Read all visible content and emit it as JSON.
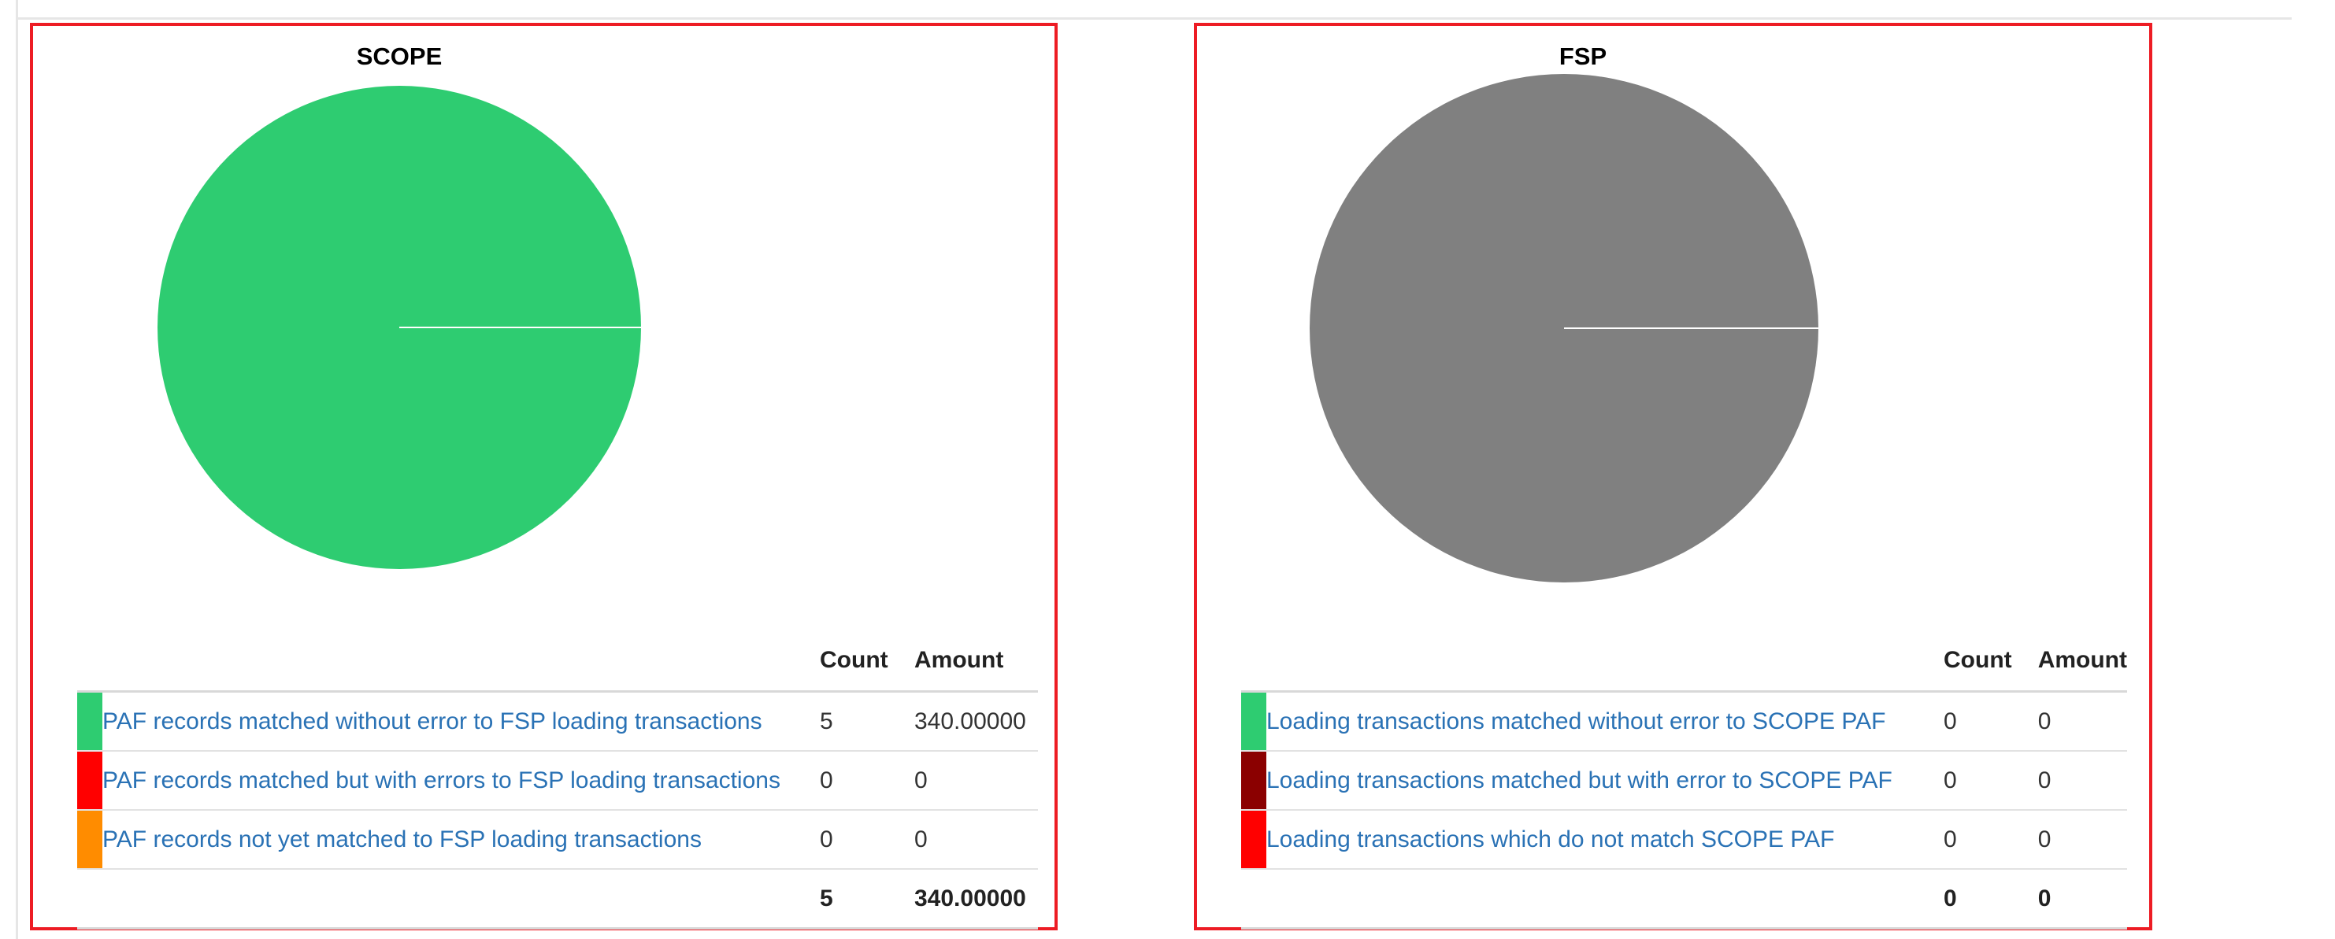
{
  "colors": {
    "green": "#2ecc71",
    "red": "#ff0000",
    "orange": "#ff8c00",
    "dark_red": "#8b0000",
    "gray": "#808080",
    "link": "#2a72b5"
  },
  "chart_data": [
    {
      "type": "pie",
      "title": "SCOPE",
      "slices": [
        {
          "label": "PAF records matched without error to FSP loading transactions",
          "value": 5,
          "color": "#2ecc71"
        },
        {
          "label": "PAF records matched but with errors to FSP loading transactions",
          "value": 0,
          "color": "#ff0000"
        },
        {
          "label": "PAF records not yet matched to FSP loading transactions",
          "value": 0,
          "color": "#ff8c00"
        }
      ]
    },
    {
      "type": "pie",
      "title": "FSP",
      "empty_color": "#808080",
      "slices": [
        {
          "label": "Loading transactions matched without error to SCOPE PAF",
          "value": 0,
          "color": "#2ecc71"
        },
        {
          "label": "Loading transactions matched but with error to SCOPE PAF",
          "value": 0,
          "color": "#8b0000"
        },
        {
          "label": "Loading transactions which do not match SCOPE PAF",
          "value": 0,
          "color": "#ff0000"
        }
      ]
    }
  ],
  "scope_table": {
    "count_header": "Count",
    "amount_header": "Amount",
    "rows": [
      {
        "label": "PAF records matched without error to FSP loading transactions",
        "count": "5",
        "amount": "340.00000"
      },
      {
        "label": "PAF records matched but with errors to FSP loading transactions",
        "count": "0",
        "amount": "0"
      },
      {
        "label": "PAF records not yet matched to FSP loading transactions",
        "count": "0",
        "amount": "0"
      }
    ],
    "total_count": "5",
    "total_amount": "340.00000"
  },
  "fsp_table": {
    "count_header": "Count",
    "amount_header": "Amount",
    "rows": [
      {
        "label": "Loading transactions matched without error to SCOPE PAF",
        "count": "0",
        "amount": "0"
      },
      {
        "label": "Loading transactions matched but with error to SCOPE PAF",
        "count": "0",
        "amount": "0"
      },
      {
        "label": "Loading transactions which do not match SCOPE PAF",
        "count": "0",
        "amount": "0"
      }
    ],
    "total_count": "0",
    "total_amount": "0"
  }
}
